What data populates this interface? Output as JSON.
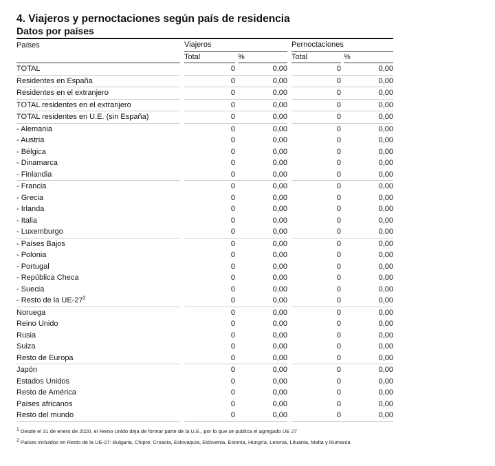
{
  "title": "4. Viajeros y pernoctaciones según país de residencia",
  "subtitle": "Datos por países",
  "headers": {
    "col": "Países",
    "viajeros": "Viajeros",
    "pernoctaciones": "Pernoctaciones",
    "total": "Total",
    "pct": "%"
  },
  "groups": [
    [
      {
        "label": "TOTAL",
        "vt": "0",
        "vp": "0,00",
        "pt": "0",
        "pp": "0,00"
      }
    ],
    [
      {
        "label": "Residentes en España",
        "vt": "0",
        "vp": "0,00",
        "pt": "0",
        "pp": "0,00"
      }
    ],
    [
      {
        "label": "Residentes en el extranjero",
        "vt": "0",
        "vp": "0,00",
        "pt": "0",
        "pp": "0,00"
      }
    ],
    [
      {
        "label": "TOTAL residentes en el extranjero",
        "vt": "0",
        "vp": "0,00",
        "pt": "0",
        "pp": "0,00"
      }
    ],
    [
      {
        "label": "TOTAL residentes en U.E. (sin España)",
        "vt": "0",
        "vp": "0,00",
        "pt": "0",
        "pp": "0,00"
      }
    ],
    [
      {
        "label": "- Alemania",
        "vt": "0",
        "vp": "0,00",
        "pt": "0",
        "pp": "0,00"
      },
      {
        "label": "- Austria",
        "vt": "0",
        "vp": "0,00",
        "pt": "0",
        "pp": "0,00"
      },
      {
        "label": "- Bélgica",
        "vt": "0",
        "vp": "0,00",
        "pt": "0",
        "pp": "0,00"
      },
      {
        "label": "- Dinamarca",
        "vt": "0",
        "vp": "0,00",
        "pt": "0",
        "pp": "0,00"
      },
      {
        "label": "- Finlandia",
        "vt": "0",
        "vp": "0,00",
        "pt": "0",
        "pp": "0,00"
      }
    ],
    [
      {
        "label": "- Francia",
        "vt": "0",
        "vp": "0,00",
        "pt": "0",
        "pp": "0,00"
      },
      {
        "label": "- Grecia",
        "vt": "0",
        "vp": "0,00",
        "pt": "0",
        "pp": "0,00"
      },
      {
        "label": "- Irlanda",
        "vt": "0",
        "vp": "0,00",
        "pt": "0",
        "pp": "0,00"
      },
      {
        "label": "- Italia",
        "vt": "0",
        "vp": "0,00",
        "pt": "0",
        "pp": "0,00"
      },
      {
        "label": "- Luxemburgo",
        "vt": "0",
        "vp": "0,00",
        "pt": "0",
        "pp": "0,00"
      }
    ],
    [
      {
        "label": "- Países Bajos",
        "vt": "0",
        "vp": "0,00",
        "pt": "0",
        "pp": "0,00"
      },
      {
        "label": "- Polonia",
        "vt": "0",
        "vp": "0,00",
        "pt": "0",
        "pp": "0,00"
      },
      {
        "label": "- Portugal",
        "vt": "0",
        "vp": "0,00",
        "pt": "0",
        "pp": "0,00"
      },
      {
        "label": "- República Checa",
        "vt": "0",
        "vp": "0,00",
        "pt": "0",
        "pp": "0,00"
      },
      {
        "label": "- Suecia",
        "vt": "0",
        "vp": "0,00",
        "pt": "0",
        "pp": "0,00"
      },
      {
        "label": "- Resto de la UE-27",
        "sup": "2",
        "vt": "0",
        "vp": "0,00",
        "pt": "0",
        "pp": "0,00"
      }
    ],
    [
      {
        "label": "Noruega",
        "vt": "0",
        "vp": "0,00",
        "pt": "0",
        "pp": "0,00"
      },
      {
        "label": "Reino Unido",
        "vt": "0",
        "vp": "0,00",
        "pt": "0",
        "pp": "0,00"
      },
      {
        "label": "Rusia",
        "vt": "0",
        "vp": "0,00",
        "pt": "0",
        "pp": "0,00"
      },
      {
        "label": "Suiza",
        "vt": "0",
        "vp": "0,00",
        "pt": "0",
        "pp": "0,00"
      },
      {
        "label": "Resto de Europa",
        "vt": "0",
        "vp": "0,00",
        "pt": "0",
        "pp": "0,00"
      }
    ],
    [
      {
        "label": "Japón",
        "vt": "0",
        "vp": "0,00",
        "pt": "0",
        "pp": "0,00"
      },
      {
        "label": "Estados Unidos",
        "vt": "0",
        "vp": "0,00",
        "pt": "0",
        "pp": "0,00"
      },
      {
        "label": "Resto de América",
        "vt": "0",
        "vp": "0,00",
        "pt": "0",
        "pp": "0,00"
      },
      {
        "label": "Países africanos",
        "vt": "0",
        "vp": "0,00",
        "pt": "0",
        "pp": "0,00"
      },
      {
        "label": "Resto del mundo",
        "vt": "0",
        "vp": "0,00",
        "pt": "0",
        "pp": "0,00"
      }
    ]
  ],
  "notes": [
    {
      "mark": "1",
      "text": "Desde el 31 de enero de 2020, el Reino Unido deja de formar parte de la U.E., por lo que se publica el agregado UE 27"
    },
    {
      "mark": "2",
      "text": "Países incluidos en Resto de la UE-27: Bulgaria, Chipre, Croacia, Eslovaquia, Eslovenia, Estonia, Hungría, Letonia, Lituania, Malta y Rumanía"
    }
  ]
}
